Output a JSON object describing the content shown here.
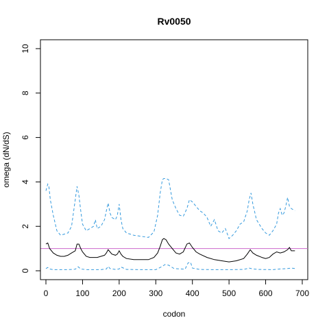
{
  "chart_data": {
    "type": "line",
    "title": "Rv0050",
    "xlabel": "codon",
    "ylabel": "omega (dN/dS)",
    "xlim": [
      -15,
      715
    ],
    "ylim": [
      -0.4,
      10.4
    ],
    "xticks": [
      0,
      100,
      200,
      300,
      400,
      500,
      600,
      700
    ],
    "yticks": [
      0,
      2,
      4,
      6,
      8,
      10
    ],
    "grid": false,
    "reference_line": {
      "y": 1,
      "color": "#cc66cc"
    },
    "series": [
      {
        "style": "solid",
        "color": "#000000",
        "x": [
          0,
          5,
          10,
          20,
          30,
          40,
          50,
          60,
          70,
          80,
          85,
          90,
          95,
          100,
          110,
          120,
          130,
          140,
          150,
          160,
          165,
          170,
          175,
          180,
          190,
          195,
          200,
          205,
          210,
          220,
          240,
          260,
          280,
          295,
          305,
          312,
          318,
          322,
          328,
          335,
          345,
          355,
          365,
          375,
          385,
          392,
          400,
          410,
          420,
          440,
          460,
          480,
          500,
          520,
          540,
          550,
          558,
          565,
          575,
          590,
          600,
          610,
          620,
          630,
          640,
          650,
          660,
          665,
          670,
          680
        ],
        "y": [
          1.2,
          1.25,
          1.0,
          0.8,
          0.7,
          0.65,
          0.65,
          0.7,
          0.8,
          0.9,
          1.2,
          1.2,
          1.0,
          0.85,
          0.65,
          0.6,
          0.6,
          0.6,
          0.65,
          0.7,
          0.8,
          0.95,
          0.85,
          0.75,
          0.7,
          0.75,
          0.9,
          0.75,
          0.65,
          0.55,
          0.5,
          0.5,
          0.5,
          0.6,
          0.8,
          1.1,
          1.4,
          1.45,
          1.4,
          1.2,
          1.0,
          0.8,
          0.75,
          0.85,
          1.2,
          1.25,
          1.05,
          0.85,
          0.75,
          0.6,
          0.5,
          0.45,
          0.4,
          0.45,
          0.55,
          0.75,
          0.95,
          0.8,
          0.7,
          0.6,
          0.55,
          0.6,
          0.75,
          0.85,
          0.8,
          0.85,
          0.95,
          1.05,
          0.9,
          0.9
        ]
      },
      {
        "style": "dashed",
        "color": "#3399dd",
        "x": [
          0,
          5,
          8,
          12,
          20,
          30,
          40,
          50,
          60,
          70,
          80,
          85,
          90,
          95,
          100,
          110,
          120,
          130,
          135,
          140,
          150,
          160,
          165,
          170,
          175,
          180,
          190,
          195,
          200,
          205,
          210,
          220,
          240,
          260,
          280,
          295,
          305,
          312,
          318,
          322,
          328,
          335,
          345,
          355,
          365,
          375,
          385,
          392,
          400,
          410,
          420,
          430,
          440,
          450,
          460,
          470,
          480,
          490,
          500,
          510,
          520,
          530,
          540,
          550,
          555,
          560,
          565,
          575,
          590,
          600,
          610,
          620,
          630,
          635,
          640,
          645,
          650,
          655,
          660,
          665,
          670,
          680
        ],
        "y": [
          3.6,
          3.9,
          3.8,
          3.2,
          2.5,
          1.8,
          1.6,
          1.65,
          1.7,
          2.0,
          3.2,
          3.8,
          3.4,
          2.7,
          2.1,
          1.8,
          1.9,
          2.0,
          2.3,
          1.9,
          2.0,
          2.3,
          2.7,
          3.05,
          2.6,
          2.4,
          2.3,
          2.5,
          3.0,
          2.3,
          1.9,
          1.7,
          1.6,
          1.55,
          1.5,
          1.75,
          2.5,
          3.5,
          4.1,
          4.15,
          4.15,
          4.1,
          3.2,
          2.8,
          2.5,
          2.45,
          2.8,
          3.2,
          3.1,
          2.9,
          2.7,
          2.6,
          2.4,
          2.0,
          2.3,
          1.8,
          1.7,
          1.9,
          1.45,
          1.6,
          1.8,
          2.1,
          2.2,
          2.7,
          3.2,
          3.5,
          3.0,
          2.3,
          1.9,
          1.7,
          1.6,
          1.8,
          2.1,
          2.6,
          2.8,
          2.5,
          2.6,
          2.9,
          3.3,
          2.9,
          2.8,
          2.7
        ]
      },
      {
        "style": "dashed",
        "color": "#3399dd",
        "x": [
          0,
          5,
          10,
          20,
          40,
          60,
          80,
          88,
          95,
          110,
          130,
          150,
          165,
          170,
          175,
          190,
          200,
          205,
          220,
          260,
          300,
          318,
          325,
          335,
          350,
          380,
          388,
          395,
          400,
          420,
          460,
          500,
          540,
          555,
          565,
          580,
          620,
          640,
          660,
          670,
          680
        ],
        "y": [
          0.1,
          0.15,
          0.08,
          0.05,
          0.05,
          0.05,
          0.07,
          0.18,
          0.08,
          0.05,
          0.05,
          0.05,
          0.08,
          0.2,
          0.1,
          0.06,
          0.08,
          0.17,
          0.06,
          0.05,
          0.05,
          0.2,
          0.28,
          0.25,
          0.1,
          0.07,
          0.35,
          0.38,
          0.12,
          0.06,
          0.05,
          0.05,
          0.06,
          0.12,
          0.08,
          0.06,
          0.05,
          0.08,
          0.1,
          0.12,
          0.1
        ]
      }
    ]
  }
}
